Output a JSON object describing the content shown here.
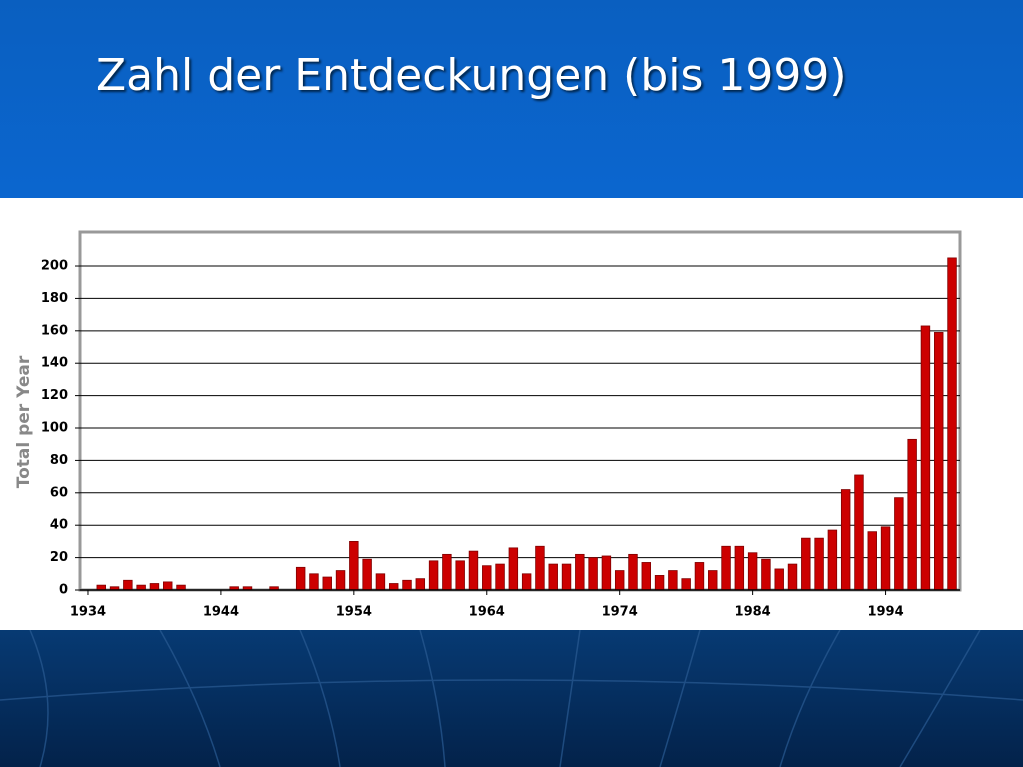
{
  "chart_data": {
    "type": "bar",
    "title": "Zahl der Entdeckungen (bis 1999)",
    "y_label": "Total per Year",
    "x": [
      1935,
      1936,
      1937,
      1938,
      1939,
      1940,
      1941,
      1942,
      1943,
      1944,
      1945,
      1946,
      1947,
      1948,
      1949,
      1950,
      1951,
      1952,
      1953,
      1954,
      1955,
      1956,
      1957,
      1958,
      1959,
      1960,
      1961,
      1962,
      1963,
      1964,
      1965,
      1966,
      1967,
      1968,
      1969,
      1970,
      1971,
      1972,
      1973,
      1974,
      1975,
      1976,
      1977,
      1978,
      1979,
      1980,
      1981,
      1982,
      1983,
      1984,
      1985,
      1986,
      1987,
      1988,
      1989,
      1990,
      1991,
      1992,
      1993,
      1994,
      1995,
      1996,
      1997,
      1998,
      1999
    ],
    "values": [
      3,
      2,
      6,
      3,
      4,
      5,
      3,
      0,
      0,
      0,
      2,
      2,
      0,
      2,
      0,
      14,
      10,
      8,
      12,
      30,
      19,
      10,
      4,
      6,
      7,
      18,
      22,
      18,
      24,
      15,
      16,
      26,
      10,
      27,
      16,
      16,
      22,
      20,
      21,
      12,
      22,
      17,
      9,
      12,
      7,
      17,
      12,
      27,
      27,
      23,
      19,
      13,
      16,
      32,
      32,
      37,
      62,
      71,
      36,
      39,
      57,
      93,
      163,
      159,
      205
    ],
    "color": "#cc0000",
    "xlim": [
      1933.4,
      1999.6
    ],
    "xticks": [
      1934,
      1944,
      1954,
      1964,
      1974,
      1984,
      1994
    ],
    "ylim": [
      0,
      221
    ],
    "yticks": [
      0,
      20,
      40,
      60,
      80,
      100,
      120,
      140,
      160,
      180,
      200
    ],
    "grid": true
  }
}
